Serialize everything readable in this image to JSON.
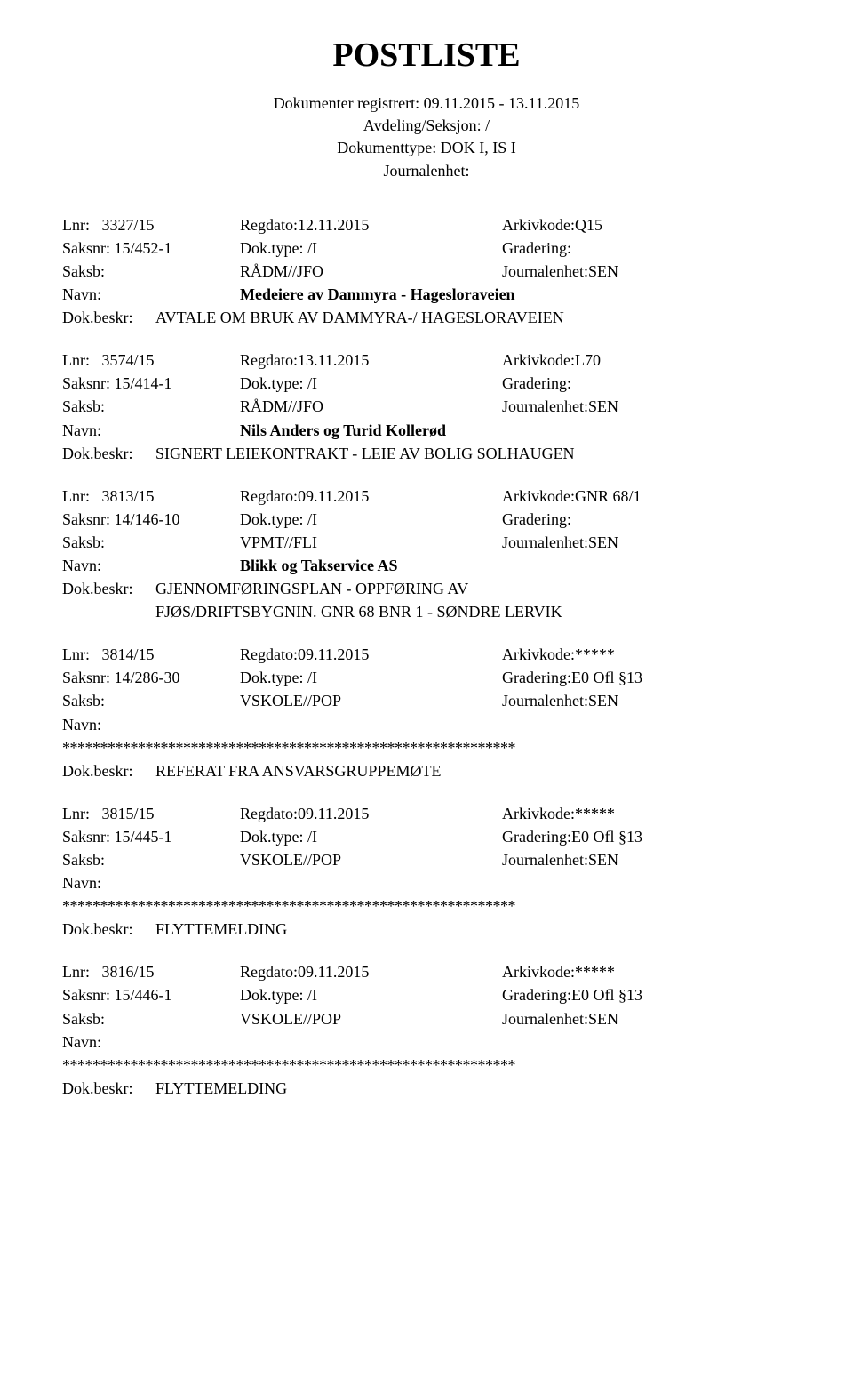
{
  "title": "POSTLISTE",
  "header": {
    "line1": "Dokumenter registrert: 09.11.2015 - 13.11.2015",
    "line2": "Avdeling/Seksjon: /",
    "line3": "Dokumenttype: DOK I, IS I",
    "line4": "Journalenhet:"
  },
  "labels": {
    "lnr": "Lnr:",
    "regdato": "Regdato:",
    "arkivkode": "Arkivkode:",
    "saksnr": "Saksnr:",
    "doktype": "Dok.type:",
    "gradering": "Gradering:",
    "saksb": "Saksb:",
    "journalenhet": "Journalenhet:",
    "navn": "Navn:",
    "dokbeskr": "Dok.beskr:"
  },
  "entries": [
    {
      "lnr": "3327/15",
      "regdato": "12.11.2015",
      "arkivkode": "Q15",
      "saksnr": "15/452-1",
      "doktype": "/I",
      "gradering": "",
      "saksb": "RÅDM//JFO",
      "journalenhet": "SEN",
      "navn": "Medeiere av Dammyra - Hagesloraveien",
      "dokbeskr": "AVTALE OM BRUK AV DAMMYRA-/ HAGESLORAVEIEN",
      "dokbeskr2": "",
      "redacted": false
    },
    {
      "lnr": "3574/15",
      "regdato": "13.11.2015",
      "arkivkode": "L70",
      "saksnr": "15/414-1",
      "doktype": "/I",
      "gradering": "",
      "saksb": "RÅDM//JFO",
      "journalenhet": "SEN",
      "navn": "Nils Anders og Turid Kollerød",
      "dokbeskr": "SIGNERT LEIEKONTRAKT - LEIE AV BOLIG SOLHAUGEN",
      "dokbeskr2": "",
      "redacted": false
    },
    {
      "lnr": "3813/15",
      "regdato": "09.11.2015",
      "arkivkode": "GNR 68/1",
      "saksnr": "14/146-10",
      "doktype": "/I",
      "gradering": "",
      "saksb": "VPMT//FLI",
      "journalenhet": "SEN",
      "navn": "Blikk og Takservice AS",
      "dokbeskr": "GJENNOMFØRINGSPLAN - OPPFØRING AV",
      "dokbeskr2": "FJØS/DRIFTSBYGNIN. GNR 68 BNR 1 - SØNDRE LERVIK",
      "redacted": false
    },
    {
      "lnr": "3814/15",
      "regdato": "09.11.2015",
      "arkivkode": "*****",
      "saksnr": "14/286-30",
      "doktype": "/I",
      "gradering": "E0 Ofl §13",
      "saksb": "VSKOLE//POP",
      "journalenhet": "SEN",
      "navn": "",
      "dokbeskr": "REFERAT FRA ANSVARSGRUPPEMØTE",
      "dokbeskr2": "",
      "redacted": true
    },
    {
      "lnr": "3815/15",
      "regdato": "09.11.2015",
      "arkivkode": "*****",
      "saksnr": "15/445-1",
      "doktype": "/I",
      "gradering": "E0 Ofl §13",
      "saksb": "VSKOLE//POP",
      "journalenhet": "SEN",
      "navn": "",
      "dokbeskr": "FLYTTEMELDING",
      "dokbeskr2": "",
      "redacted": true
    },
    {
      "lnr": "3816/15",
      "regdato": "09.11.2015",
      "arkivkode": "*****",
      "saksnr": "15/446-1",
      "doktype": "/I",
      "gradering": "E0 Ofl §13",
      "saksb": "VSKOLE//POP",
      "journalenhet": "SEN",
      "navn": "",
      "dokbeskr": "FLYTTEMELDING",
      "dokbeskr2": "",
      "redacted": true
    }
  ],
  "redactedLine": "************************************************************"
}
